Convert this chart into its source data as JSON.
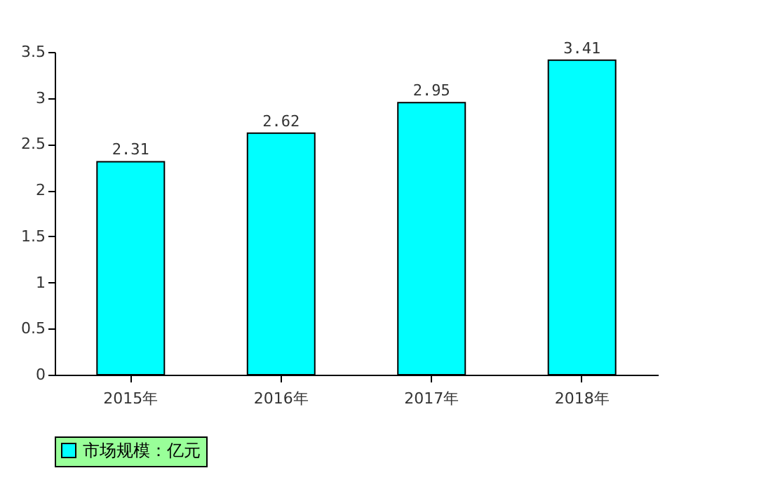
{
  "chart_data": {
    "type": "bar",
    "categories": [
      "2015年",
      "2016年",
      "2017年",
      "2018年"
    ],
    "series": [
      {
        "name": "市场规模：亿元",
        "color": "#00ffff",
        "values": [
          2.31,
          2.62,
          2.95,
          3.41
        ]
      }
    ],
    "ylim": [
      0,
      3.5
    ],
    "yticks": [
      0,
      0.5,
      1,
      1.5,
      2,
      2.5,
      3,
      3.5
    ],
    "data_labels": true,
    "grid": false,
    "legend": "bottom"
  }
}
